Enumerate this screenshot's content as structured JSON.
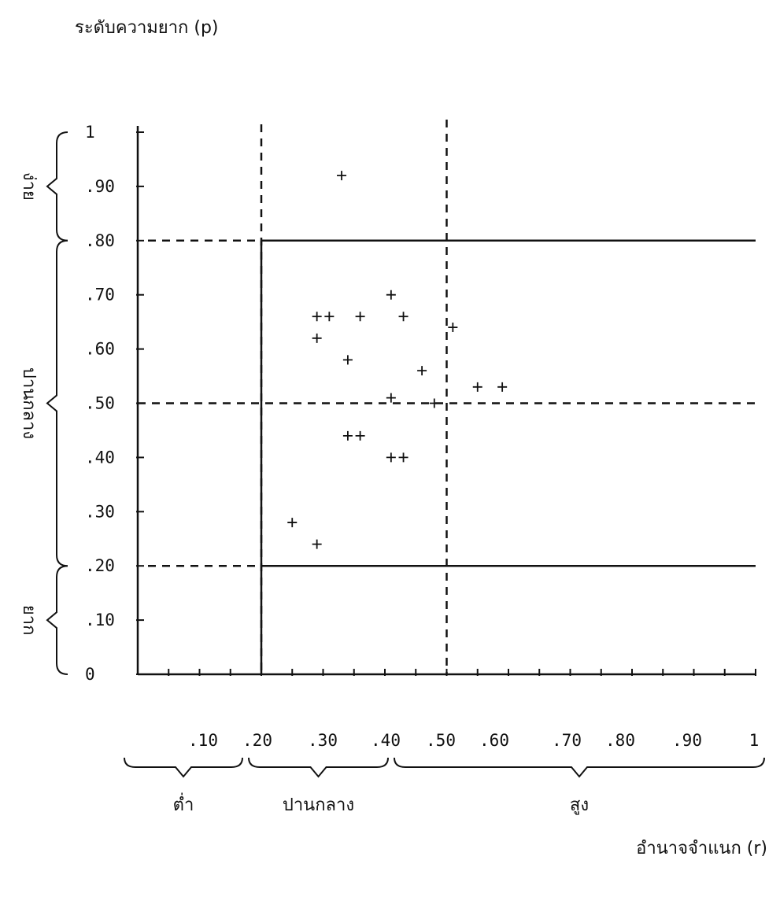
{
  "chart_data": {
    "type": "scatter",
    "ylabel": "ระดับความยาก (p)",
    "xlabel": "อำนาจจำแนก (r)",
    "xlim": [
      0,
      1
    ],
    "ylim": [
      0,
      1
    ],
    "x_ticks": [
      ".10",
      ".20",
      ".30",
      ".40",
      ".50",
      ".60",
      ".70",
      ".80",
      ".90",
      "1"
    ],
    "y_ticks": [
      "0",
      ".10",
      ".20",
      ".30",
      ".40",
      ".50",
      ".60",
      ".70",
      ".80",
      ".90",
      "1"
    ],
    "x_ranges": [
      {
        "label": "ต่ำ",
        "from": 0.0,
        "to": 0.2
      },
      {
        "label": "ปานกลาง",
        "from": 0.2,
        "to": 0.4
      },
      {
        "label": "สูง",
        "from": 0.4,
        "to": 1.0
      }
    ],
    "y_ranges": [
      {
        "label": "ยาก",
        "from": 0.0,
        "to": 0.2
      },
      {
        "label": "ปานกลาง",
        "from": 0.2,
        "to": 0.8
      },
      {
        "label": "ง่าย",
        "from": 0.8,
        "to": 1.0
      }
    ],
    "acceptance_region": {
      "x_from": 0.2,
      "x_to": 1.0,
      "y_from": 0.2,
      "y_to": 0.8
    },
    "reference_lines": {
      "x": [
        0.2,
        0.5
      ],
      "y": [
        0.5
      ]
    },
    "grid": false,
    "points": [
      {
        "x": 0.33,
        "y": 0.92
      },
      {
        "x": 0.29,
        "y": 0.66
      },
      {
        "x": 0.31,
        "y": 0.66
      },
      {
        "x": 0.36,
        "y": 0.66
      },
      {
        "x": 0.41,
        "y": 0.7
      },
      {
        "x": 0.43,
        "y": 0.66
      },
      {
        "x": 0.51,
        "y": 0.64
      },
      {
        "x": 0.29,
        "y": 0.62
      },
      {
        "x": 0.34,
        "y": 0.58
      },
      {
        "x": 0.46,
        "y": 0.56
      },
      {
        "x": 0.55,
        "y": 0.53
      },
      {
        "x": 0.59,
        "y": 0.53
      },
      {
        "x": 0.41,
        "y": 0.51
      },
      {
        "x": 0.48,
        "y": 0.5
      },
      {
        "x": 0.34,
        "y": 0.44
      },
      {
        "x": 0.36,
        "y": 0.44
      },
      {
        "x": 0.41,
        "y": 0.4
      },
      {
        "x": 0.43,
        "y": 0.4
      },
      {
        "x": 0.25,
        "y": 0.28
      },
      {
        "x": 0.29,
        "y": 0.24
      }
    ]
  }
}
